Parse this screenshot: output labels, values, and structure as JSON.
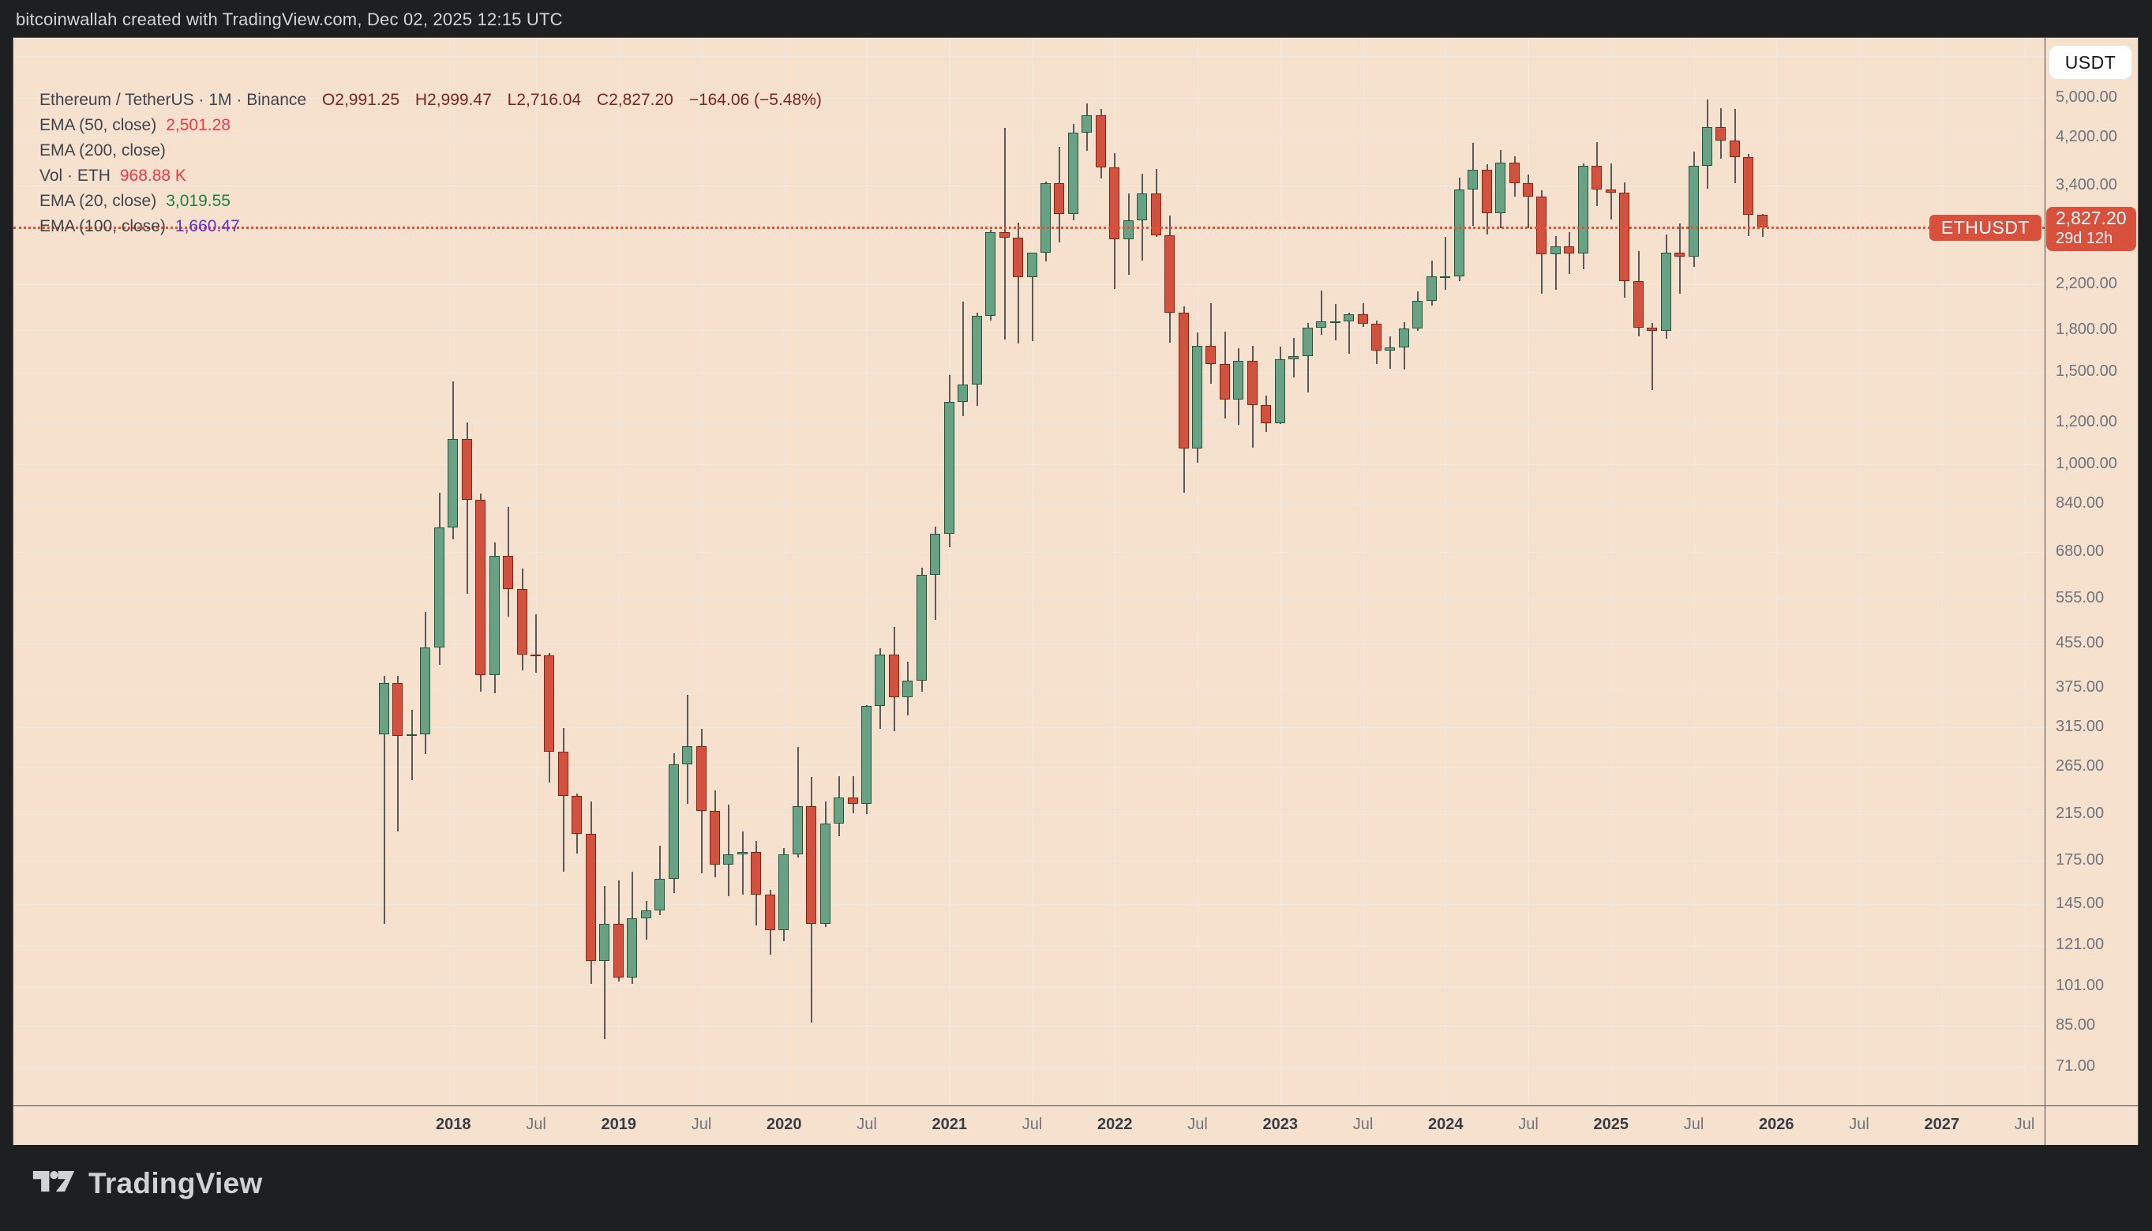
{
  "top_bar": {
    "attribution": "bitcoinwallah created with TradingView.com, Dec 02, 2025 12:15 UTC"
  },
  "legend": {
    "title": "Ethereum / TetherUS · 1M · Binance",
    "ohlc": {
      "open": "O2,991.25",
      "high": "H2,999.47",
      "low": "L2,716.04",
      "close": "C2,827.20",
      "change": "−164.06 (−5.48%)"
    },
    "indicators": [
      {
        "label": "EMA (50, close)",
        "value": "2,501.28",
        "value_color": "#f23645"
      },
      {
        "label": "EMA (200, close)",
        "value": "",
        "value_color": ""
      },
      {
        "label": "Vol · ETH",
        "value": "968.88 K",
        "value_color": "#f23645"
      },
      {
        "label": "EMA (20, close)",
        "value": "3,019.55",
        "value_color": "#1e823b"
      },
      {
        "label": "EMA (100, close)",
        "value": "1,660.47",
        "value_color": "#5b31d0"
      }
    ]
  },
  "price_axis": {
    "currency_button": "USDT",
    "ticks": [
      {
        "price": 6000,
        "label": ""
      },
      {
        "price": 5000,
        "label": "5,000.00"
      },
      {
        "price": 4200,
        "label": "4,200.00"
      },
      {
        "price": 3400,
        "label": "3,400.00"
      },
      {
        "price": 2200,
        "label": "2,200.00"
      },
      {
        "price": 1800,
        "label": "1,800.00"
      },
      {
        "price": 1500,
        "label": "1,500.00"
      },
      {
        "price": 1200,
        "label": "1,200.00"
      },
      {
        "price": 1000,
        "label": "1,000.00"
      },
      {
        "price": 840,
        "label": "840.00"
      },
      {
        "price": 680,
        "label": "680.00"
      },
      {
        "price": 555,
        "label": "555.00"
      },
      {
        "price": 455,
        "label": "455.00"
      },
      {
        "price": 375,
        "label": "375.00"
      },
      {
        "price": 315,
        "label": "315.00"
      },
      {
        "price": 265,
        "label": "265.00"
      },
      {
        "price": 215,
        "label": "215.00"
      },
      {
        "price": 175,
        "label": "175.00"
      },
      {
        "price": 145,
        "label": "145.00"
      },
      {
        "price": 121,
        "label": "121.00"
      },
      {
        "price": 101,
        "label": "101.00"
      },
      {
        "price": 85,
        "label": "85.00"
      },
      {
        "price": 71,
        "label": "71.00"
      }
    ],
    "badge": {
      "price_label": "2,827.20",
      "countdown": "29d 12h"
    },
    "symbol_label": {
      "text": "ETHUSDT"
    }
  },
  "time_axis": {
    "labels": [
      "2018",
      "Jul",
      "2019",
      "Jul",
      "2020",
      "Jul",
      "2021",
      "Jul",
      "2022",
      "Jul",
      "2023",
      "Jul",
      "2024",
      "Jul",
      "2025",
      "Jul",
      "2026",
      "Jul",
      "2027",
      "Jul"
    ]
  },
  "footer": {
    "brand": "TradingView"
  },
  "colors": {
    "accent_red": "#d8513d",
    "ohlc_text": "#7f231c",
    "legend_text": "#40444c",
    "background": "#f6e1ce",
    "frame": "#1e1f20",
    "grid": "#efe8e1",
    "up_fill": "#68a183",
    "up_border": "#20563b",
    "down_fill": "#d0523f",
    "down_border": "#8e2112",
    "wick": "#5a5a5a",
    "price_line": "#e8502f"
  },
  "chart_data": {
    "type": "candlestick",
    "symbol": "ETHUSDT",
    "exchange": "Binance",
    "interval": "1M",
    "scale": "log",
    "grid": true,
    "title": "Ethereum / TetherUS · 1M · Binance",
    "ylim": [
      71,
      5000
    ],
    "current_price": 2827.2,
    "price_line": 2827.2,
    "calibration": {
      "first_month": "2017-08",
      "x0": 487,
      "dx_per_month": 17.458,
      "log_a": 2580,
      "log_b": 288.4,
      "plot_left": 17,
      "plot_top": 48
    },
    "candles": [
      [
        "2017-08",
        305,
        395,
        133,
        383
      ],
      [
        "2017-09",
        383,
        395,
        199,
        303
      ],
      [
        "2017-10",
        303,
        340,
        250,
        305
      ],
      [
        "2017-11",
        305,
        522,
        280,
        447
      ],
      [
        "2017-12",
        447,
        881,
        414,
        756
      ],
      [
        "2018-01",
        756,
        1440,
        720,
        1118
      ],
      [
        "2018-02",
        1118,
        1200,
        565,
        855
      ],
      [
        "2018-03",
        855,
        880,
        368,
        396
      ],
      [
        "2018-04",
        396,
        710,
        365,
        669
      ],
      [
        "2018-05",
        669,
        830,
        511,
        577
      ],
      [
        "2018-06",
        577,
        633,
        404,
        434
      ],
      [
        "2018-07",
        434,
        518,
        400,
        432
      ],
      [
        "2018-08",
        432,
        436,
        247,
        283
      ],
      [
        "2018-09",
        283,
        314,
        167,
        233
      ],
      [
        "2018-10",
        233,
        235,
        181,
        197
      ],
      [
        "2018-11",
        197,
        227,
        102,
        113
      ],
      [
        "2018-12",
        113,
        157,
        80,
        133
      ],
      [
        "2019-01",
        133,
        161,
        103,
        105
      ],
      [
        "2019-02",
        105,
        167,
        102,
        136
      ],
      [
        "2019-03",
        136,
        147,
        124,
        141
      ],
      [
        "2019-04",
        141,
        187,
        138,
        162
      ],
      [
        "2019-05",
        162,
        281,
        152,
        268
      ],
      [
        "2019-06",
        268,
        363,
        225,
        290
      ],
      [
        "2019-07",
        290,
        313,
        166,
        218
      ],
      [
        "2019-08",
        218,
        239,
        163,
        172
      ],
      [
        "2019-09",
        172,
        224,
        150,
        180
      ],
      [
        "2019-10",
        180,
        199,
        151,
        182
      ],
      [
        "2019-11",
        182,
        191,
        132,
        151
      ],
      [
        "2019-12",
        151,
        154,
        116,
        129
      ],
      [
        "2020-01",
        129,
        185,
        123,
        180
      ],
      [
        "2020-02",
        180,
        289,
        178,
        223
      ],
      [
        "2020-03",
        223,
        253,
        86,
        133
      ],
      [
        "2020-04",
        133,
        227,
        131,
        206
      ],
      [
        "2020-05",
        206,
        254,
        195,
        231
      ],
      [
        "2020-06",
        231,
        254,
        216,
        225
      ],
      [
        "2020-07",
        225,
        347,
        215,
        346
      ],
      [
        "2020-08",
        346,
        446,
        313,
        434
      ],
      [
        "2020-09",
        434,
        490,
        310,
        359
      ],
      [
        "2020-10",
        359,
        420,
        332,
        386
      ],
      [
        "2020-11",
        386,
        635,
        368,
        615
      ],
      [
        "2020-12",
        615,
        760,
        505,
        737
      ],
      [
        "2021-01",
        737,
        1478,
        695,
        1314
      ],
      [
        "2021-02",
        1314,
        2042,
        1236,
        1416
      ],
      [
        "2021-03",
        1416,
        1947,
        1293,
        1919
      ],
      [
        "2021-04",
        1919,
        2800,
        1881,
        2773
      ],
      [
        "2021-05",
        2773,
        4372,
        1728,
        2707
      ],
      [
        "2021-06",
        2707,
        2891,
        1700,
        2275
      ],
      [
        "2021-07",
        2275,
        2450,
        1718,
        2531
      ],
      [
        "2021-08",
        2531,
        3462,
        2438,
        3430
      ],
      [
        "2021-09",
        3430,
        4027,
        2650,
        3001
      ],
      [
        "2021-10",
        3001,
        4460,
        2917,
        4288
      ],
      [
        "2021-11",
        4288,
        4868,
        3959,
        4631
      ],
      [
        "2021-12",
        4631,
        4760,
        3503,
        3683
      ],
      [
        "2022-01",
        3683,
        3916,
        2160,
        2688
      ],
      [
        "2022-02",
        2688,
        3283,
        2300,
        2919
      ],
      [
        "2022-03",
        2919,
        3580,
        2447,
        3282
      ],
      [
        "2022-04",
        3282,
        3661,
        2716,
        2729
      ],
      [
        "2022-05",
        2729,
        2974,
        1703,
        1942
      ],
      [
        "2022-06",
        1942,
        2000,
        881,
        1071
      ],
      [
        "2022-07",
        1071,
        1786,
        1007,
        1681
      ],
      [
        "2022-08",
        1681,
        2030,
        1422,
        1554
      ],
      [
        "2022-09",
        1554,
        1789,
        1220,
        1328
      ],
      [
        "2022-10",
        1328,
        1663,
        1190,
        1572
      ],
      [
        "2022-11",
        1572,
        1680,
        1073,
        1294
      ],
      [
        "2022-12",
        1294,
        1350,
        1150,
        1196
      ],
      [
        "2023-01",
        1196,
        1674,
        1191,
        1585
      ],
      [
        "2023-02",
        1585,
        1742,
        1461,
        1605
      ],
      [
        "2023-03",
        1605,
        1857,
        1368,
        1822
      ],
      [
        "2023-04",
        1822,
        2141,
        1765,
        1869
      ],
      [
        "2023-05",
        1869,
        2018,
        1721,
        1874
      ],
      [
        "2023-06",
        1874,
        1945,
        1622,
        1934
      ],
      [
        "2023-07",
        1934,
        2029,
        1825,
        1855
      ],
      [
        "2023-08",
        1855,
        1879,
        1550,
        1645
      ],
      [
        "2023-09",
        1645,
        1755,
        1522,
        1671
      ],
      [
        "2023-10",
        1671,
        1864,
        1517,
        1815
      ],
      [
        "2023-11",
        1815,
        2137,
        1793,
        2051
      ],
      [
        "2023-12",
        2051,
        2445,
        2004,
        2281
      ],
      [
        "2024-01",
        2281,
        2717,
        2150,
        2283
      ],
      [
        "2024-02",
        2283,
        3522,
        2235,
        3341
      ],
      [
        "2024-03",
        3341,
        4093,
        2850,
        3647
      ],
      [
        "2024-04",
        3647,
        3728,
        2741,
        3014
      ],
      [
        "2024-05",
        3014,
        3976,
        2817,
        3762
      ],
      [
        "2024-06",
        3762,
        3862,
        3240,
        3434
      ],
      [
        "2024-07",
        3434,
        3563,
        2814,
        3232
      ],
      [
        "2024-08",
        3232,
        3330,
        2111,
        2513
      ],
      [
        "2024-09",
        2513,
        2724,
        2150,
        2602
      ],
      [
        "2024-10",
        2602,
        2768,
        2305,
        2518
      ],
      [
        "2024-11",
        2518,
        3742,
        2350,
        3703
      ],
      [
        "2024-12",
        3703,
        4107,
        3101,
        3337
      ],
      [
        "2025-01",
        3337,
        3744,
        2924,
        3298
      ],
      [
        "2025-02",
        3298,
        3442,
        2077,
        2237
      ],
      [
        "2025-03",
        2237,
        2551,
        1754,
        1822
      ],
      [
        "2025-04",
        1822,
        1857,
        1385,
        1793
      ],
      [
        "2025-05",
        1793,
        2739,
        1735,
        2530
      ],
      [
        "2025-06",
        2530,
        2881,
        2111,
        2488
      ],
      [
        "2025-07",
        2488,
        3944,
        2380,
        3702
      ],
      [
        "2025-08",
        3702,
        4956,
        3355,
        4392
      ],
      [
        "2025-09",
        4392,
        4772,
        3829,
        4146
      ],
      [
        "2025-10",
        4146,
        4759,
        3436,
        3855
      ],
      [
        "2025-11",
        3855,
        3910,
        2719,
        2991.25
      ],
      [
        "2025-12",
        2991.25,
        2999.47,
        2716.04,
        2827.2
      ]
    ]
  }
}
